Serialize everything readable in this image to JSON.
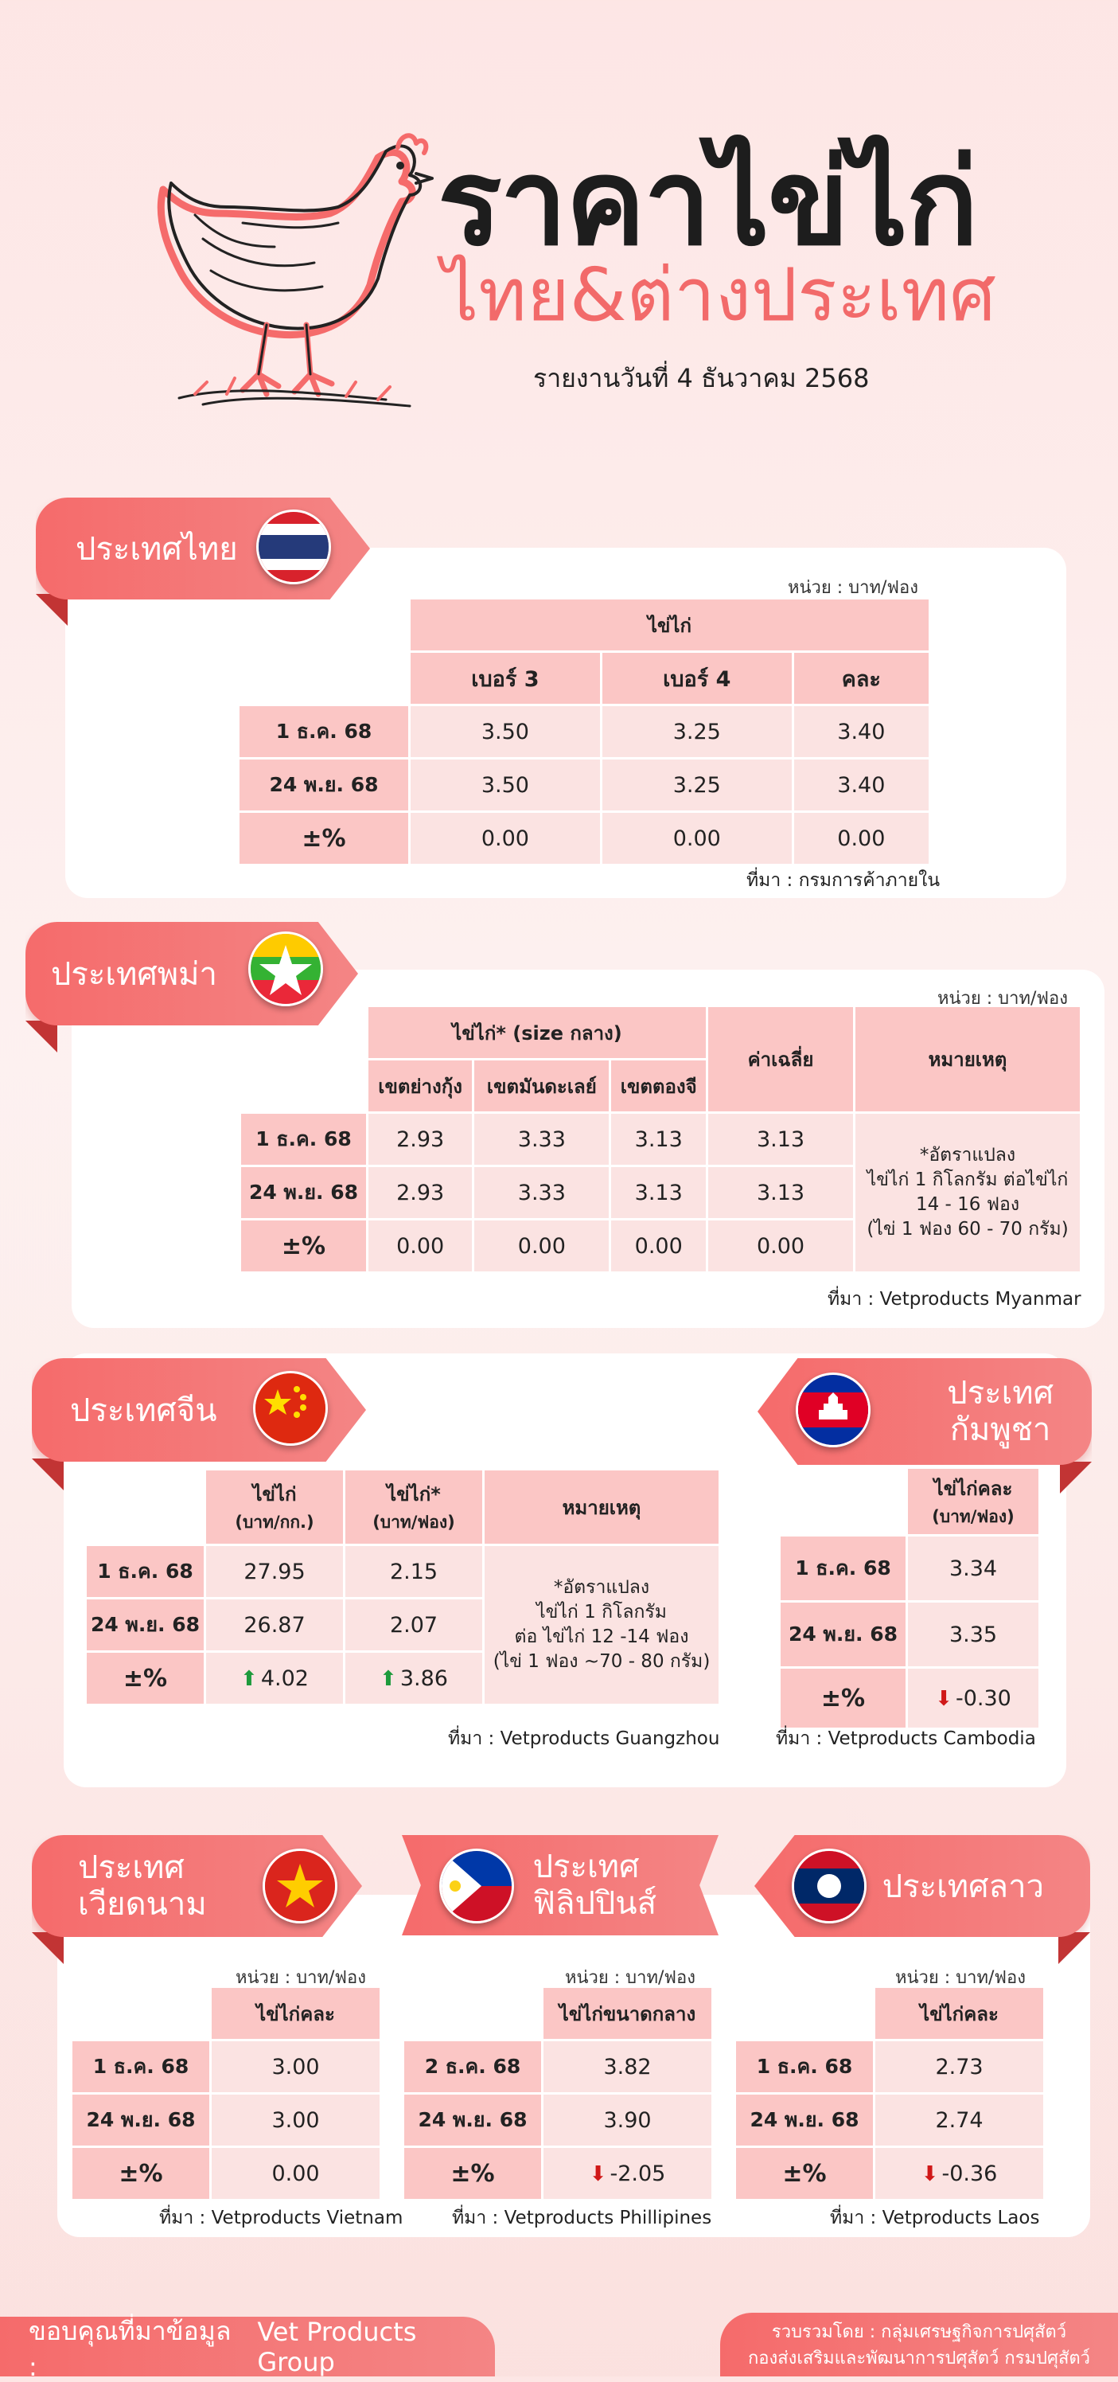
{
  "header": {
    "title": "ราคาไข่ไก่",
    "subtitle": "ไทย&ต่างประเทศ",
    "report_date": "รายงานวันที่ 4 ธันวาคม 2568"
  },
  "thailand": {
    "label": "ประเทศไทย",
    "unit": "หน่วย : บาท/ฟอง",
    "group_header": "ไข่ไก่",
    "columns": [
      "เบอร์ 3",
      "เบอร์ 4",
      "คละ"
    ],
    "rows": [
      {
        "label": "1 ธ.ค. 68",
        "values": [
          "3.50",
          "3.25",
          "3.40"
        ]
      },
      {
        "label": "24 พ.ย. 68",
        "values": [
          "3.50",
          "3.25",
          "3.40"
        ]
      },
      {
        "label": "±%",
        "values": [
          "0.00",
          "0.00",
          "0.00"
        ]
      }
    ],
    "source": "ที่มา : กรมการค้าภายใน"
  },
  "myanmar": {
    "label": "ประเทศพม่า",
    "unit": "หน่วย : บาท/ฟอง",
    "group_header": "ไข่ไก่* (size กลาง)",
    "columns": [
      "เขตย่างกุ้ง",
      "เขตมันดะเลย์",
      "เขตตองจี"
    ],
    "avg_header": "ค่าเฉลี่ย",
    "note_header": "หมายเหตุ",
    "note_lines": [
      "*อัตราแปลง",
      "ไข่ไก่ 1 กิโลกรัม ต่อไข่ไก่",
      "14 - 16 ฟอง",
      "(ไข่ 1 ฟอง 60 - 70 กรัม)"
    ],
    "rows": [
      {
        "label": "1 ธ.ค. 68",
        "values": [
          "2.93",
          "3.33",
          "3.13",
          "3.13"
        ]
      },
      {
        "label": "24 พ.ย. 68",
        "values": [
          "2.93",
          "3.33",
          "3.13",
          "3.13"
        ]
      },
      {
        "label": "±%",
        "values": [
          "0.00",
          "0.00",
          "0.00",
          "0.00"
        ]
      }
    ],
    "source": "ที่มา : Vetproducts Myanmar"
  },
  "china": {
    "label": "ประเทศจีน",
    "columns": [
      {
        "line1": "ไข่ไก่",
        "line2": "(บาท/กก.)"
      },
      {
        "line1": "ไข่ไก่*",
        "line2": "(บาท/ฟอง)"
      }
    ],
    "note_header": "หมายเหตุ",
    "note_lines": [
      "*อัตราแปลง",
      "ไข่ไก่ 1 กิโลกรัม",
      "ต่อ ไข่ไก่ 12 -14 ฟอง",
      "(ไข่ 1 ฟอง ~70 - 80 กรัม)"
    ],
    "rows": [
      {
        "label": "1 ธ.ค. 68",
        "values": [
          "27.95",
          "2.15"
        ]
      },
      {
        "label": "24 พ.ย. 68",
        "values": [
          "26.87",
          "2.07"
        ]
      }
    ],
    "change_label": "±%",
    "change_values": [
      "4.02",
      "3.86"
    ],
    "source": "ที่มา : Vetproducts Guangzhou"
  },
  "cambodia": {
    "label_line1": "ประเทศ",
    "label_line2": "กัมพูชา",
    "column": {
      "line1": "ไข่ไก่คละ",
      "line2": "(บาท/ฟอง)"
    },
    "rows": [
      {
        "label": "1 ธ.ค. 68",
        "value": "3.34"
      },
      {
        "label": "24 พ.ย. 68",
        "value": "3.35"
      }
    ],
    "change_label": "±%",
    "change_value": "-0.30",
    "source": "ที่มา : Vetproducts Cambodia"
  },
  "vietnam": {
    "label_line1": "ประเทศ",
    "label_line2": "เวียดนาม",
    "unit": "หน่วย : บาท/ฟอง",
    "column": "ไข่ไก่คละ",
    "rows": [
      {
        "label": "1 ธ.ค. 68",
        "value": "3.00"
      },
      {
        "label": "24 พ.ย. 68",
        "value": "3.00"
      }
    ],
    "change_label": "±%",
    "change_value": "0.00",
    "source": "ที่มา : Vetproducts Vietnam"
  },
  "philippines": {
    "label_line1": "ประเทศ",
    "label_line2": "ฟิลิปปินส์",
    "unit": "หน่วย : บาท/ฟอง",
    "column": "ไข่ไก่ขนาดกลาง",
    "rows": [
      {
        "label": "2 ธ.ค. 68",
        "value": "3.82"
      },
      {
        "label": "24 พ.ย. 68",
        "value": "3.90"
      }
    ],
    "change_label": "±%",
    "change_value": "-2.05",
    "source": "ที่มา : Vetproducts Phillipines"
  },
  "laos": {
    "label": "ประเทศลาว",
    "unit": "หน่วย : บาท/ฟอง",
    "column": "ไข่ไก่คละ",
    "rows": [
      {
        "label": "1 ธ.ค. 68",
        "value": "2.73"
      },
      {
        "label": "24 พ.ย. 68",
        "value": "2.74"
      }
    ],
    "change_label": "±%",
    "change_value": "-0.36",
    "source": "ที่มา : Vetproducts Laos"
  },
  "footer": {
    "thanks_label": "ขอบคุณที่มาข้อมูล :",
    "thanks_value": "Vet Products Group",
    "compiled_line1": "รวบรวมโดย : กลุ่มเศรษฐกิจการปศุสัตว์",
    "compiled_line2": "กองส่งเสริมและพัฒนาการปศุสัตว์ กรมปศุสัตว์"
  },
  "colors": {
    "accent": "#f56b6b",
    "header_cell": "#fbc6c5",
    "data_cell": "#fbe3e2",
    "up": "#1e9a3c",
    "down": "#d01818"
  }
}
